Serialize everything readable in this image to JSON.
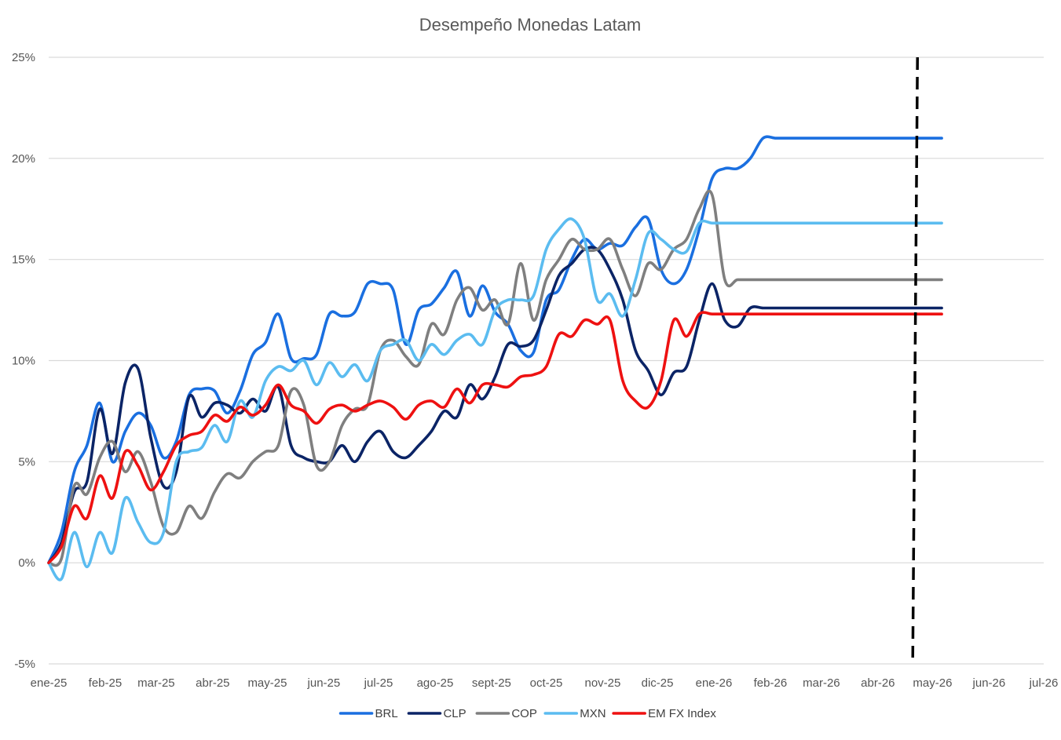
{
  "chart_data": {
    "type": "line",
    "title": "Desempeño Monedas Latam",
    "xlabel": "",
    "ylabel": "",
    "x_range": [
      "2025-01-01",
      "2026-07-01"
    ],
    "ylim": [
      -0.05,
      0.25
    ],
    "y_ticks": [
      -0.05,
      0,
      0.05,
      0.1,
      0.15,
      0.2,
      0.25
    ],
    "y_tick_labels": [
      "-5%",
      "0%",
      "5%",
      "10%",
      "15%",
      "20%",
      "25%"
    ],
    "x_ticks": [
      "2025-01-01",
      "2025-02-01",
      "2025-03-01",
      "2025-04-01",
      "2025-05-01",
      "2025-06-01",
      "2025-07-01",
      "2025-08-01",
      "2025-09-01",
      "2025-10-01",
      "2025-11-01",
      "2025-12-01",
      "2026-01-01",
      "2026-02-01",
      "2026-03-01",
      "2026-04-01",
      "2026-05-01",
      "2026-06-01",
      "2026-07-01"
    ],
    "x_tick_labels": [
      "ene-25",
      "feb-25",
      "mar-25",
      "abr-25",
      "may-25",
      "jun-25",
      "jul-25",
      "ago-25",
      "sept-25",
      "oct-25",
      "nov-25",
      "dic-25",
      "ene-26",
      "feb-26",
      "mar-26",
      "abr-26",
      "may-26",
      "jun-26",
      "jul-26"
    ],
    "grid": "horizontal",
    "legend_position": "bottom",
    "vertical_marker": "2026-04-21",
    "series": [
      {
        "name": "BRL",
        "color": "#1a6fe0",
        "x": [
          "2025-01-01",
          "2025-01-08",
          "2025-01-15",
          "2025-01-22",
          "2025-01-29",
          "2025-02-05",
          "2025-02-12",
          "2025-02-19",
          "2025-02-26",
          "2025-03-05",
          "2025-03-12",
          "2025-03-19",
          "2025-03-26",
          "2025-04-02",
          "2025-04-09",
          "2025-04-16",
          "2025-04-23",
          "2025-04-30",
          "2025-05-07",
          "2025-05-14",
          "2025-05-21",
          "2025-05-28",
          "2025-06-04",
          "2025-06-11",
          "2025-06-18",
          "2025-06-25",
          "2025-07-02",
          "2025-07-09",
          "2025-07-16",
          "2025-07-23",
          "2025-07-30",
          "2025-08-06",
          "2025-08-13",
          "2025-08-20",
          "2025-08-27",
          "2025-09-03",
          "2025-09-10",
          "2025-09-17",
          "2025-09-24",
          "2025-10-01",
          "2025-10-08",
          "2025-10-15",
          "2025-10-22",
          "2025-10-29",
          "2025-11-05",
          "2025-11-12",
          "2025-11-19",
          "2025-11-26",
          "2025-12-03",
          "2025-12-10",
          "2025-12-17",
          "2025-12-24",
          "2025-12-31",
          "2026-01-07",
          "2026-01-14",
          "2026-01-21",
          "2026-01-28",
          "2026-02-04",
          "2026-02-11",
          "2026-02-18",
          "2026-02-25",
          "2026-03-04",
          "2026-03-11",
          "2026-03-18",
          "2026-03-25",
          "2026-04-01",
          "2026-04-08",
          "2026-04-15",
          "2026-04-22",
          "2026-04-29",
          "2026-05-06"
        ],
        "values": [
          0.0,
          0.015,
          0.045,
          0.058,
          0.079,
          0.05,
          0.065,
          0.074,
          0.068,
          0.052,
          0.06,
          0.083,
          0.086,
          0.085,
          0.074,
          0.085,
          0.103,
          0.109,
          0.123,
          0.101,
          0.101,
          0.103,
          0.123,
          0.122,
          0.124,
          0.138,
          0.138,
          0.135,
          0.108,
          0.125,
          0.128,
          0.136,
          0.144,
          0.122,
          0.137,
          0.124,
          0.118,
          0.105,
          0.104,
          0.13,
          0.135,
          0.15,
          0.16,
          0.155,
          0.158,
          0.157,
          0.166,
          0.17,
          0.145,
          0.138,
          0.145,
          0.165,
          0.19,
          0.195,
          0.195,
          0.2,
          0.21,
          0.21,
          0.21,
          0.21,
          0.21,
          0.21,
          0.21,
          0.21,
          0.21,
          0.21,
          0.21,
          0.21,
          0.21,
          0.21,
          0.21
        ]
      },
      {
        "name": "CLP",
        "color": "#0b2466",
        "x": [
          "2025-01-01",
          "2025-01-08",
          "2025-01-15",
          "2025-01-22",
          "2025-01-29",
          "2025-02-05",
          "2025-02-12",
          "2025-02-19",
          "2025-02-26",
          "2025-03-05",
          "2025-03-12",
          "2025-03-19",
          "2025-03-26",
          "2025-04-02",
          "2025-04-09",
          "2025-04-16",
          "2025-04-23",
          "2025-04-30",
          "2025-05-07",
          "2025-05-14",
          "2025-05-21",
          "2025-05-28",
          "2025-06-04",
          "2025-06-11",
          "2025-06-18",
          "2025-06-25",
          "2025-07-02",
          "2025-07-09",
          "2025-07-16",
          "2025-07-23",
          "2025-07-30",
          "2025-08-06",
          "2025-08-13",
          "2025-08-20",
          "2025-08-27",
          "2025-09-03",
          "2025-09-10",
          "2025-09-17",
          "2025-09-24",
          "2025-10-01",
          "2025-10-08",
          "2025-10-15",
          "2025-10-22",
          "2025-10-29",
          "2025-11-05",
          "2025-11-12",
          "2025-11-19",
          "2025-11-26",
          "2025-12-03",
          "2025-12-10",
          "2025-12-17",
          "2025-12-24",
          "2025-12-31",
          "2026-01-07",
          "2026-01-14",
          "2026-01-21",
          "2026-01-28",
          "2026-02-04",
          "2026-02-11",
          "2026-02-18",
          "2026-02-25",
          "2026-03-04",
          "2026-03-11",
          "2026-03-18",
          "2026-03-25",
          "2026-04-01",
          "2026-04-08",
          "2026-04-15",
          "2026-04-22",
          "2026-04-29",
          "2026-05-06"
        ],
        "values": [
          0.0,
          0.01,
          0.035,
          0.04,
          0.076,
          0.054,
          0.089,
          0.096,
          0.062,
          0.038,
          0.045,
          0.082,
          0.072,
          0.079,
          0.078,
          0.074,
          0.081,
          0.075,
          0.087,
          0.058,
          0.052,
          0.05,
          0.05,
          0.058,
          0.05,
          0.06,
          0.065,
          0.055,
          0.052,
          0.058,
          0.065,
          0.075,
          0.072,
          0.088,
          0.081,
          0.092,
          0.108,
          0.107,
          0.11,
          0.125,
          0.142,
          0.148,
          0.155,
          0.155,
          0.145,
          0.13,
          0.105,
          0.095,
          0.083,
          0.094,
          0.097,
          0.12,
          0.138,
          0.12,
          0.117,
          0.126,
          0.126,
          0.126,
          0.126,
          0.126,
          0.126,
          0.126,
          0.126,
          0.126,
          0.126,
          0.126,
          0.126,
          0.126,
          0.126,
          0.126,
          0.126
        ]
      },
      {
        "name": "COP",
        "color": "#7f7f7f",
        "x": [
          "2025-01-01",
          "2025-01-08",
          "2025-01-15",
          "2025-01-22",
          "2025-01-29",
          "2025-02-05",
          "2025-02-12",
          "2025-02-19",
          "2025-02-26",
          "2025-03-05",
          "2025-03-12",
          "2025-03-19",
          "2025-03-26",
          "2025-04-02",
          "2025-04-09",
          "2025-04-16",
          "2025-04-23",
          "2025-04-30",
          "2025-05-07",
          "2025-05-14",
          "2025-05-21",
          "2025-05-28",
          "2025-06-04",
          "2025-06-11",
          "2025-06-18",
          "2025-06-25",
          "2025-07-02",
          "2025-07-09",
          "2025-07-16",
          "2025-07-23",
          "2025-07-30",
          "2025-08-06",
          "2025-08-13",
          "2025-08-20",
          "2025-08-27",
          "2025-09-03",
          "2025-09-10",
          "2025-09-17",
          "2025-09-24",
          "2025-10-01",
          "2025-10-08",
          "2025-10-15",
          "2025-10-22",
          "2025-10-29",
          "2025-11-05",
          "2025-11-12",
          "2025-11-19",
          "2025-11-26",
          "2025-12-03",
          "2025-12-10",
          "2025-12-17",
          "2025-12-24",
          "2025-12-31",
          "2026-01-07",
          "2026-01-14",
          "2026-01-21",
          "2026-01-28",
          "2026-02-04",
          "2026-02-11",
          "2026-02-18",
          "2026-02-25",
          "2026-03-04",
          "2026-03-11",
          "2026-03-18",
          "2026-03-25",
          "2026-04-01",
          "2026-04-08",
          "2026-04-15",
          "2026-04-22",
          "2026-04-29",
          "2026-05-06"
        ],
        "values": [
          0.0,
          0.002,
          0.038,
          0.034,
          0.052,
          0.06,
          0.045,
          0.055,
          0.04,
          0.018,
          0.015,
          0.028,
          0.022,
          0.035,
          0.044,
          0.042,
          0.05,
          0.055,
          0.058,
          0.085,
          0.078,
          0.048,
          0.05,
          0.068,
          0.076,
          0.078,
          0.105,
          0.11,
          0.102,
          0.098,
          0.118,
          0.113,
          0.13,
          0.136,
          0.125,
          0.13,
          0.118,
          0.148,
          0.12,
          0.14,
          0.15,
          0.16,
          0.155,
          0.155,
          0.16,
          0.145,
          0.132,
          0.148,
          0.145,
          0.155,
          0.16,
          0.175,
          0.182,
          0.14,
          0.14,
          0.14,
          0.14,
          0.14,
          0.14,
          0.14,
          0.14,
          0.14,
          0.14,
          0.14,
          0.14,
          0.14,
          0.14,
          0.14,
          0.14,
          0.14,
          0.14
        ]
      },
      {
        "name": "MXN",
        "color": "#5bbcf0",
        "x": [
          "2025-01-01",
          "2025-01-08",
          "2025-01-15",
          "2025-01-22",
          "2025-01-29",
          "2025-02-05",
          "2025-02-12",
          "2025-02-19",
          "2025-02-26",
          "2025-03-05",
          "2025-03-12",
          "2025-03-19",
          "2025-03-26",
          "2025-04-02",
          "2025-04-09",
          "2025-04-16",
          "2025-04-23",
          "2025-04-30",
          "2025-05-07",
          "2025-05-14",
          "2025-05-21",
          "2025-05-28",
          "2025-06-04",
          "2025-06-11",
          "2025-06-18",
          "2025-06-25",
          "2025-07-02",
          "2025-07-09",
          "2025-07-16",
          "2025-07-23",
          "2025-07-30",
          "2025-08-06",
          "2025-08-13",
          "2025-08-20",
          "2025-08-27",
          "2025-09-03",
          "2025-09-10",
          "2025-09-17",
          "2025-09-24",
          "2025-10-01",
          "2025-10-08",
          "2025-10-15",
          "2025-10-22",
          "2025-10-29",
          "2025-11-05",
          "2025-11-12",
          "2025-11-19",
          "2025-11-26",
          "2025-12-03",
          "2025-12-10",
          "2025-12-17",
          "2025-12-24",
          "2025-12-31",
          "2026-01-07",
          "2026-01-14",
          "2026-01-21",
          "2026-01-28",
          "2026-02-04",
          "2026-02-11",
          "2026-02-18",
          "2026-02-25",
          "2026-03-04",
          "2026-03-11",
          "2026-03-18",
          "2026-03-25",
          "2026-04-01",
          "2026-04-08",
          "2026-04-15",
          "2026-04-22",
          "2026-04-29",
          "2026-05-06"
        ],
        "values": [
          0.0,
          -0.008,
          0.015,
          -0.002,
          0.015,
          0.005,
          0.032,
          0.02,
          0.01,
          0.015,
          0.05,
          0.055,
          0.057,
          0.068,
          0.06,
          0.08,
          0.072,
          0.09,
          0.097,
          0.095,
          0.1,
          0.088,
          0.099,
          0.092,
          0.098,
          0.09,
          0.105,
          0.108,
          0.11,
          0.1,
          0.108,
          0.103,
          0.11,
          0.113,
          0.108,
          0.125,
          0.13,
          0.13,
          0.132,
          0.155,
          0.165,
          0.17,
          0.16,
          0.13,
          0.133,
          0.122,
          0.14,
          0.163,
          0.16,
          0.155,
          0.154,
          0.168,
          0.168,
          0.168,
          0.168,
          0.168,
          0.168,
          0.168,
          0.168,
          0.168,
          0.168,
          0.168,
          0.168,
          0.168,
          0.168,
          0.168,
          0.168,
          0.168,
          0.168,
          0.168,
          0.168
        ]
      },
      {
        "name": "EM FX Index",
        "color": "#ee1111",
        "x": [
          "2025-01-01",
          "2025-01-08",
          "2025-01-15",
          "2025-01-22",
          "2025-01-29",
          "2025-02-05",
          "2025-02-12",
          "2025-02-19",
          "2025-02-26",
          "2025-03-05",
          "2025-03-12",
          "2025-03-19",
          "2025-03-26",
          "2025-04-02",
          "2025-04-09",
          "2025-04-16",
          "2025-04-23",
          "2025-04-30",
          "2025-05-07",
          "2025-05-14",
          "2025-05-21",
          "2025-05-28",
          "2025-06-04",
          "2025-06-11",
          "2025-06-18",
          "2025-06-25",
          "2025-07-02",
          "2025-07-09",
          "2025-07-16",
          "2025-07-23",
          "2025-07-30",
          "2025-08-06",
          "2025-08-13",
          "2025-08-20",
          "2025-08-27",
          "2025-09-03",
          "2025-09-10",
          "2025-09-17",
          "2025-09-24",
          "2025-10-01",
          "2025-10-08",
          "2025-10-15",
          "2025-10-22",
          "2025-10-29",
          "2025-11-05",
          "2025-11-12",
          "2025-11-19",
          "2025-11-26",
          "2025-12-03",
          "2025-12-10",
          "2025-12-17",
          "2025-12-24",
          "2025-12-31",
          "2026-01-07",
          "2026-01-14",
          "2026-01-21",
          "2026-01-28",
          "2026-02-04",
          "2026-02-11",
          "2026-02-18",
          "2026-02-25",
          "2026-03-04",
          "2026-03-11",
          "2026-03-18",
          "2026-03-25",
          "2026-04-01",
          "2026-04-08",
          "2026-04-15",
          "2026-04-22",
          "2026-04-29",
          "2026-05-06"
        ],
        "values": [
          0.0,
          0.008,
          0.028,
          0.022,
          0.043,
          0.032,
          0.055,
          0.048,
          0.036,
          0.045,
          0.058,
          0.063,
          0.065,
          0.073,
          0.07,
          0.077,
          0.073,
          0.078,
          0.088,
          0.078,
          0.075,
          0.069,
          0.076,
          0.078,
          0.075,
          0.078,
          0.08,
          0.077,
          0.071,
          0.078,
          0.08,
          0.077,
          0.086,
          0.079,
          0.088,
          0.088,
          0.087,
          0.092,
          0.093,
          0.097,
          0.113,
          0.112,
          0.12,
          0.118,
          0.12,
          0.09,
          0.08,
          0.077,
          0.09,
          0.12,
          0.112,
          0.123,
          0.123,
          0.123,
          0.123,
          0.123,
          0.123,
          0.123,
          0.123,
          0.123,
          0.123,
          0.123,
          0.123,
          0.123,
          0.123,
          0.123,
          0.123,
          0.123,
          0.123,
          0.123,
          0.123
        ]
      }
    ]
  }
}
